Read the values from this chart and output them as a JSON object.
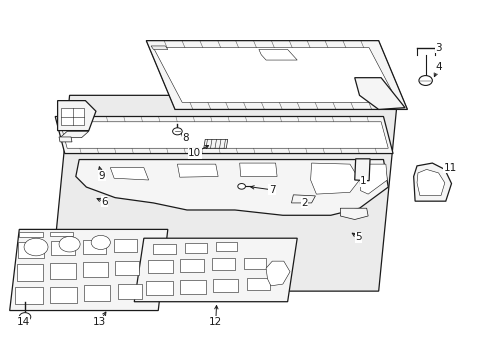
{
  "background_color": "#ffffff",
  "line_color": "#1a1a1a",
  "part_fill": "#f5f5f5",
  "panel_fill": "#ebebeb",
  "white": "#ffffff",
  "label_positions": {
    "1": [
      0.728,
      0.495,
      0.7,
      0.51
    ],
    "2": [
      0.62,
      0.44,
      0.6,
      0.455
    ],
    "3": [
      0.883,
      0.87,
      0.865,
      0.868
    ],
    "4": [
      0.883,
      0.82,
      0.872,
      0.79
    ],
    "5": [
      0.72,
      0.34,
      0.7,
      0.355
    ],
    "6": [
      0.21,
      0.445,
      0.185,
      0.465
    ],
    "7": [
      0.545,
      0.475,
      0.52,
      0.482
    ],
    "8": [
      0.37,
      0.625,
      0.368,
      0.64
    ],
    "9": [
      0.2,
      0.518,
      0.192,
      0.548
    ],
    "10": [
      0.395,
      0.58,
      0.415,
      0.565
    ],
    "11": [
      0.903,
      0.535,
      0.885,
      0.515
    ],
    "12": [
      0.435,
      0.105,
      0.438,
      0.13
    ],
    "13": [
      0.198,
      0.105,
      0.215,
      0.13
    ],
    "14": [
      0.04,
      0.105,
      0.048,
      0.12
    ]
  }
}
